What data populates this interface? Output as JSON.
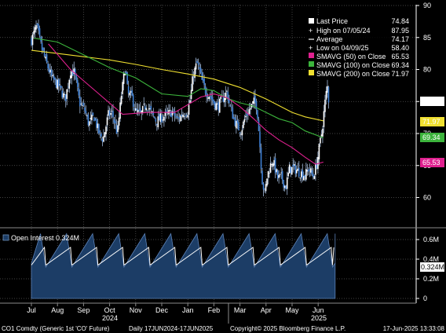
{
  "chart_data": [
    {
      "type": "candlestick",
      "period": "2024-06-17 to 2025-06-17",
      "ylim": [
        55,
        90
      ],
      "y_ticks": [
        "90",
        "85",
        "80",
        "75",
        "70",
        "65",
        "60"
      ],
      "x_ticks": [
        "Jul",
        "Aug",
        "Sep",
        "Oct",
        "Nov",
        "Dec",
        "Jan",
        "Feb",
        "Mar",
        "Apr",
        "May",
        "Jun"
      ],
      "year_labels": [
        "2024",
        "2025"
      ],
      "grid": true,
      "legend_placement": "top-right",
      "legend": [
        {
          "name": "Last Price",
          "value": "74.84",
          "marker": "white-square"
        },
        {
          "name": "High on 07/05/24",
          "value": "87.95",
          "marker": "plus"
        },
        {
          "name": "Average",
          "value": "74.17",
          "marker": "dash"
        },
        {
          "name": "Low on 04/09/25",
          "value": "58.40",
          "marker": "plus"
        },
        {
          "name": "SMAVG (50)  on Close",
          "value": "65.53",
          "color": "#e0208f"
        },
        {
          "name": "SMAVG (100)  on Close",
          "value": "69.34",
          "color": "#3cb43c"
        },
        {
          "name": "SMAVG (200)  on Close",
          "value": "71.97",
          "color": "#f0e030"
        }
      ],
      "price_tags": [
        {
          "value": "74.84",
          "bg": "#ffffff",
          "fg": "#000000"
        },
        {
          "value": "71.97",
          "bg": "#f0e030",
          "fg": "#000000"
        },
        {
          "value": "69.34",
          "bg": "#3cb43c",
          "fg": "#ffffff"
        },
        {
          "value": "65.53",
          "bg": "#e0208f",
          "fg": "#ffffff"
        }
      ],
      "close": [
        [
          0,
          84.6
        ],
        [
          0.1,
          85.7
        ],
        [
          0.2,
          86.8
        ],
        [
          0.35,
          84.0
        ],
        [
          0.55,
          81.3
        ],
        [
          0.8,
          78.5
        ],
        [
          1.05,
          77.4
        ],
        [
          1.3,
          75.3
        ],
        [
          1.5,
          79.8
        ],
        [
          1.65,
          79.5
        ],
        [
          1.85,
          74.8
        ],
        [
          2.05,
          73.6
        ],
        [
          2.2,
          71.5
        ],
        [
          2.4,
          72.7
        ],
        [
          2.6,
          70.0
        ],
        [
          2.75,
          69.1
        ],
        [
          2.95,
          72.9
        ],
        [
          3.1,
          73.2
        ],
        [
          3.3,
          70.0
        ],
        [
          3.45,
          76.0
        ],
        [
          3.6,
          80.5
        ],
        [
          3.7,
          76.1
        ],
        [
          3.85,
          75.8
        ],
        [
          4.0,
          73.4
        ],
        [
          4.2,
          73.0
        ],
        [
          4.4,
          74.6
        ],
        [
          4.6,
          73.2
        ],
        [
          4.8,
          71.9
        ],
        [
          5.0,
          72.5
        ],
        [
          5.2,
          72.9
        ],
        [
          5.4,
          73.4
        ],
        [
          5.6,
          72.1
        ],
        [
          5.8,
          73.1
        ],
        [
          6.0,
          73.5
        ],
        [
          6.1,
          75.5
        ],
        [
          6.2,
          79.0
        ],
        [
          6.35,
          81.0
        ],
        [
          6.45,
          79.8
        ],
        [
          6.55,
          78.0
        ],
        [
          6.7,
          76.5
        ],
        [
          6.85,
          75.9
        ],
        [
          7.0,
          74.8
        ],
        [
          7.15,
          74.2
        ],
        [
          7.3,
          75.2
        ],
        [
          7.5,
          76.5
        ],
        [
          7.6,
          74.5
        ],
        [
          7.75,
          72.5
        ],
        [
          7.9,
          71.0
        ],
        [
          8.05,
          70.5
        ],
        [
          8.2,
          72.5
        ],
        [
          8.4,
          74.0
        ],
        [
          8.55,
          75.0
        ],
        [
          8.65,
          74.3
        ],
        [
          8.75,
          69.0
        ],
        [
          8.85,
          62.8
        ],
        [
          8.95,
          60.5
        ],
        [
          9.05,
          63.5
        ],
        [
          9.25,
          66.0
        ],
        [
          9.45,
          63.0
        ],
        [
          9.6,
          63.2
        ],
        [
          9.75,
          61.5
        ],
        [
          9.9,
          64.5
        ],
        [
          10.1,
          64.5
        ],
        [
          10.3,
          63.9
        ],
        [
          10.5,
          63.5
        ],
        [
          10.65,
          64.6
        ],
        [
          10.8,
          63.2
        ],
        [
          10.95,
          65.3
        ],
        [
          11.05,
          68.0
        ],
        [
          11.15,
          70.5
        ],
        [
          11.25,
          74.5
        ],
        [
          11.35,
          77.5
        ],
        [
          11.4,
          74.84
        ]
      ],
      "sma50": [
        [
          0.65,
          84.0
        ],
        [
          1.5,
          80.0
        ],
        [
          2.5,
          76.5
        ],
        [
          3.5,
          73.0
        ],
        [
          4.5,
          73.3
        ],
        [
          5.5,
          73.3
        ],
        [
          6.5,
          75.7
        ],
        [
          7.0,
          76.2
        ],
        [
          7.5,
          75.6
        ],
        [
          8.0,
          74.2
        ],
        [
          8.5,
          72.4
        ],
        [
          9.0,
          70.5
        ],
        [
          9.5,
          69.0
        ],
        [
          10.0,
          67.8
        ],
        [
          10.5,
          66.3
        ],
        [
          10.9,
          65.2
        ],
        [
          11.2,
          65.53
        ]
      ],
      "sma100": [
        [
          0.1,
          84.9
        ],
        [
          1.0,
          84.3
        ],
        [
          2.0,
          82.3
        ],
        [
          3.0,
          80.3
        ],
        [
          4.0,
          78.7
        ],
        [
          5.0,
          76.2
        ],
        [
          6.0,
          75.8
        ],
        [
          6.5,
          77.0
        ],
        [
          7.0,
          76.7
        ],
        [
          7.5,
          75.5
        ],
        [
          8.0,
          74.8
        ],
        [
          8.5,
          74.3
        ],
        [
          9.0,
          73.3
        ],
        [
          9.5,
          72.3
        ],
        [
          10.0,
          71.7
        ],
        [
          10.5,
          70.4
        ],
        [
          11.2,
          69.34
        ]
      ],
      "sma200": [
        [
          0.0,
          83.0
        ],
        [
          1.0,
          82.5
        ],
        [
          2.0,
          82.0
        ],
        [
          3.0,
          81.5
        ],
        [
          4.0,
          80.8
        ],
        [
          5.0,
          80.0
        ],
        [
          6.0,
          79.3
        ],
        [
          7.0,
          78.5
        ],
        [
          8.0,
          77.2
        ],
        [
          9.0,
          75.4
        ],
        [
          10.0,
          73.3
        ],
        [
          10.5,
          72.6
        ],
        [
          11.2,
          71.97
        ]
      ]
    },
    {
      "type": "area",
      "title": "Open Interest 0.324M",
      "ylim": [
        0,
        0.7
      ],
      "y_ticks": [
        "0.6M",
        "0.4M",
        "0.2M",
        "0"
      ],
      "last_value_tag": "0.324M",
      "area_color": "#1c3d66",
      "line_color": "#ffffff"
    }
  ],
  "footer": {
    "left": "CO1 Comdty (Generic 1st 'CO' Future)",
    "range": "Daily 17JUN2024-17JUN2025",
    "copyright": "Copyright© 2025 Bloomberg Finance L.P.",
    "timestamp": "17-Jun-2025 13:33:08"
  }
}
